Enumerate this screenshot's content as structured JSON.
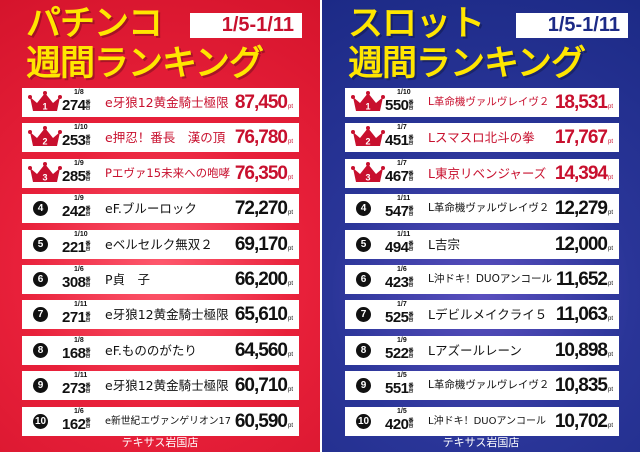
{
  "pachinko": {
    "title_line1": "パチンコ",
    "title_line2": "週間ランキング",
    "date_range": "1/5-1/11",
    "accent": "#c8102e",
    "unit_machine": "番台",
    "unit_points": "pt",
    "footer": "テキサス岩国店",
    "rows": [
      {
        "rank": "1",
        "date": "1/8",
        "machine": "274",
        "name": "e牙狼12黄金騎士極限",
        "score": "87,450"
      },
      {
        "rank": "2",
        "date": "1/10",
        "machine": "253",
        "name": "e押忍！番長　漢の頂",
        "score": "76,780"
      },
      {
        "rank": "3",
        "date": "1/9",
        "machine": "285",
        "name": "Pエヴァ15未来への咆哮",
        "score": "76,350"
      },
      {
        "rank": "4",
        "date": "1/9",
        "machine": "242",
        "name": "eF.ブルーロック",
        "score": "72,270"
      },
      {
        "rank": "5",
        "date": "1/10",
        "machine": "221",
        "name": "eベルセルク無双２",
        "score": "69,170"
      },
      {
        "rank": "6",
        "date": "1/6",
        "machine": "308",
        "name": "P貞　子",
        "score": "66,200"
      },
      {
        "rank": "7",
        "date": "1/11",
        "machine": "271",
        "name": "e牙狼12黄金騎士極限",
        "score": "65,610"
      },
      {
        "rank": "8",
        "date": "1/8",
        "machine": "168",
        "name": "eF.もののがたり",
        "score": "64,560"
      },
      {
        "rank": "9",
        "date": "1/11",
        "machine": "273",
        "name": "e牙狼12黄金騎士極限",
        "score": "60,710"
      },
      {
        "rank": "10",
        "date": "1/6",
        "machine": "162",
        "name": "e新世紀エヴァンゲリオン17",
        "score": "60,590"
      }
    ]
  },
  "slot": {
    "title_line1": "スロット",
    "title_line2": "週間ランキング",
    "date_range": "1/5-1/11",
    "accent": "#c8102e",
    "unit_machine": "番台",
    "unit_points": "pt",
    "footer": "テキサス岩国店",
    "rows": [
      {
        "rank": "1",
        "date": "1/10",
        "machine": "550",
        "name": "L革命機ヴァルヴレイヴ２",
        "score": "18,531"
      },
      {
        "rank": "2",
        "date": "1/7",
        "machine": "451",
        "name": "Lスマスロ北斗の拳",
        "score": "17,767"
      },
      {
        "rank": "3",
        "date": "1/7",
        "machine": "467",
        "name": "L東京リベンジャーズ",
        "score": "14,394"
      },
      {
        "rank": "4",
        "date": "1/11",
        "machine": "547",
        "name": "L革命機ヴァルヴレイヴ２",
        "score": "12,279"
      },
      {
        "rank": "5",
        "date": "1/11",
        "machine": "494",
        "name": "L吉宗",
        "score": "12,000"
      },
      {
        "rank": "6",
        "date": "1/6",
        "machine": "423",
        "name": "L沖ドキ！DUOアンコール",
        "score": "11,652"
      },
      {
        "rank": "7",
        "date": "1/7",
        "machine": "525",
        "name": "Lデビルメイクライ５",
        "score": "11,063"
      },
      {
        "rank": "8",
        "date": "1/9",
        "machine": "522",
        "name": "Lアズールレーン",
        "score": "10,898"
      },
      {
        "rank": "9",
        "date": "1/5",
        "machine": "551",
        "name": "L革命機ヴァルヴレイヴ２",
        "score": "10,835"
      },
      {
        "rank": "10",
        "date": "1/5",
        "machine": "420",
        "name": "L沖ドキ！DUOアンコール",
        "score": "10,702"
      }
    ]
  }
}
